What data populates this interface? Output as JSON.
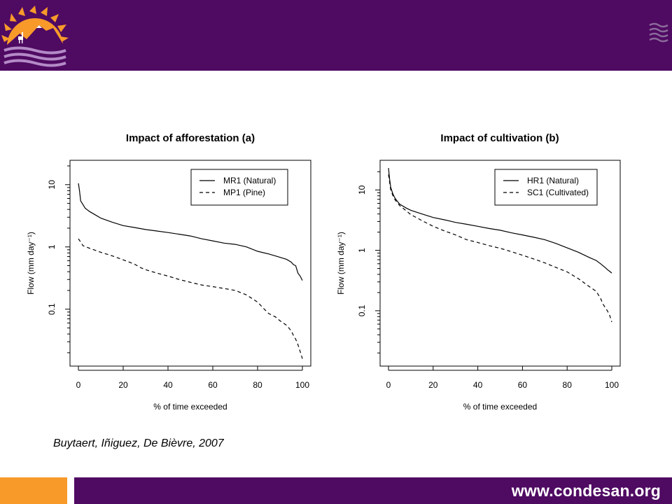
{
  "header": {
    "logo_icon": "sun-mountains-llama-logo",
    "menu_icon": "wave-lines-icon",
    "colors": {
      "band": "#4f0a62",
      "accent": "#f79a2a"
    }
  },
  "citation": "Buytaert, Iñiguez, De Bièvre, 2007",
  "footer": {
    "url": "www.condesan.org"
  },
  "chart_data": [
    {
      "type": "line",
      "title": "Impact of afforestation (a)",
      "xlabel": "% of time exceeded",
      "ylabel": "Flow (mm day⁻¹)",
      "xlim": [
        0,
        100
      ],
      "ylim": [
        0.015,
        20
      ],
      "yscale": "log",
      "xticks": [
        0,
        20,
        40,
        60,
        80,
        100
      ],
      "yticks": [
        0.1,
        1,
        10
      ],
      "ytick_labels": [
        "0.1",
        "1",
        "10"
      ],
      "grid": false,
      "legend_position": "top-right",
      "series": [
        {
          "name": "MR1 (Natural)",
          "dash": "solid",
          "x": [
            0,
            0.5,
            1,
            2,
            3,
            5,
            8,
            10,
            15,
            20,
            25,
            30,
            35,
            40,
            45,
            50,
            55,
            60,
            65,
            70,
            75,
            80,
            85,
            90,
            93,
            95,
            96,
            97,
            98,
            99,
            100
          ],
          "y": [
            10.5,
            8,
            5.5,
            4.8,
            4.2,
            3.7,
            3.2,
            2.9,
            2.5,
            2.2,
            2.05,
            1.9,
            1.8,
            1.7,
            1.6,
            1.5,
            1.35,
            1.25,
            1.15,
            1.1,
            1.0,
            0.85,
            0.77,
            0.68,
            0.63,
            0.57,
            0.52,
            0.5,
            0.38,
            0.34,
            0.29
          ]
        },
        {
          "name": "MP1 (Pine)",
          "dash": "dashed",
          "x": [
            0,
            1,
            2,
            5,
            10,
            15,
            20,
            25,
            28,
            30,
            35,
            40,
            45,
            50,
            55,
            60,
            65,
            70,
            75,
            80,
            83,
            85,
            88,
            90,
            93,
            95,
            96,
            97,
            98,
            99,
            100
          ],
          "y": [
            1.35,
            1.2,
            1.05,
            0.95,
            0.82,
            0.72,
            0.62,
            0.53,
            0.46,
            0.43,
            0.38,
            0.34,
            0.3,
            0.27,
            0.245,
            0.23,
            0.215,
            0.2,
            0.17,
            0.13,
            0.1,
            0.085,
            0.075,
            0.065,
            0.055,
            0.045,
            0.038,
            0.033,
            0.027,
            0.021,
            0.016
          ]
        }
      ]
    },
    {
      "type": "line",
      "title": "Impact of cultivation (b)",
      "xlabel": "% of time exceeded",
      "ylabel": "Flow (mm day⁻¹)",
      "xlim": [
        0,
        100
      ],
      "ylim": [
        0.015,
        25
      ],
      "yscale": "log",
      "xticks": [
        0,
        20,
        40,
        60,
        80,
        100
      ],
      "yticks": [
        0.1,
        1,
        10
      ],
      "ytick_labels": [
        "0.1",
        "1",
        "10"
      ],
      "grid": false,
      "legend_position": "top-right",
      "series": [
        {
          "name": "HR1 (Natural)",
          "dash": "solid",
          "x": [
            0,
            0.5,
            1,
            2,
            3,
            5,
            8,
            10,
            15,
            20,
            25,
            30,
            35,
            40,
            45,
            50,
            55,
            60,
            65,
            70,
            75,
            80,
            85,
            90,
            93,
            95,
            97,
            98,
            99,
            100
          ],
          "y": [
            23,
            15,
            11,
            8.5,
            7.2,
            5.8,
            5,
            4.6,
            4,
            3.5,
            3.2,
            2.9,
            2.7,
            2.5,
            2.3,
            2.15,
            1.95,
            1.8,
            1.65,
            1.5,
            1.3,
            1.1,
            0.93,
            0.76,
            0.68,
            0.6,
            0.52,
            0.48,
            0.45,
            0.42
          ]
        },
        {
          "name": "SC1 (Cultivated)",
          "dash": "dashed",
          "x": [
            0,
            1,
            2,
            3,
            5,
            8,
            10,
            15,
            20,
            25,
            30,
            35,
            40,
            45,
            50,
            55,
            60,
            65,
            70,
            75,
            80,
            85,
            90,
            93,
            95,
            96,
            98,
            99,
            100
          ],
          "y": [
            18,
            10,
            8,
            6.8,
            5.5,
            4.5,
            3.9,
            3.1,
            2.5,
            2.1,
            1.8,
            1.5,
            1.35,
            1.2,
            1.08,
            0.95,
            0.83,
            0.72,
            0.62,
            0.52,
            0.44,
            0.34,
            0.25,
            0.21,
            0.16,
            0.13,
            0.1,
            0.085,
            0.065
          ]
        }
      ]
    }
  ]
}
